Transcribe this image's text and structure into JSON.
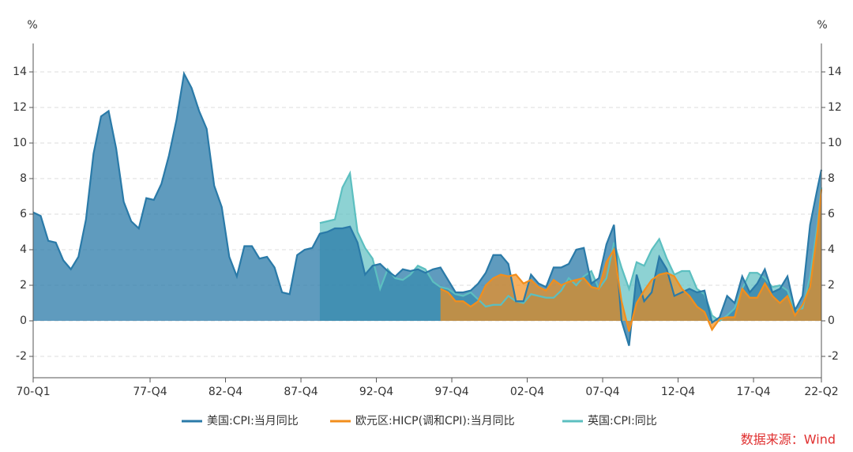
{
  "chart_data": {
    "type": "area",
    "y_label": "%",
    "y2_label": "%",
    "ylim": [
      -3.2,
      15.6
    ],
    "yticks": [
      -2,
      0,
      2,
      4,
      6,
      8,
      10,
      12,
      14
    ],
    "y2lim": [
      -3.2,
      15.6
    ],
    "y2ticks": [
      -2,
      0,
      2,
      4,
      6,
      8,
      10,
      12,
      14
    ],
    "xlim": [
      1970,
      2022.25
    ],
    "xticks": [
      {
        "value": 1970,
        "label": "70-Q1"
      },
      {
        "value": 1977.75,
        "label": "77-Q4"
      },
      {
        "value": 1982.75,
        "label": "82-Q4"
      },
      {
        "value": 1987.75,
        "label": "87-Q4"
      },
      {
        "value": 1992.75,
        "label": "92-Q4"
      },
      {
        "value": 1997.75,
        "label": "97-Q4"
      },
      {
        "value": 2002.75,
        "label": "02-Q4"
      },
      {
        "value": 2007.75,
        "label": "07-Q4"
      },
      {
        "value": 2012.75,
        "label": "12-Q4"
      },
      {
        "value": 2017.75,
        "label": "17-Q4"
      },
      {
        "value": 2022.25,
        "label": "22-Q2"
      }
    ],
    "grid": true,
    "legend": "bottom",
    "source": "数据来源：Wind",
    "series": [
      {
        "name": "美国:CPI:当月同比",
        "color": "#2a7aa8",
        "x": [
          1970,
          1970.5,
          1971,
          1971.5,
          1972,
          1972.5,
          1973,
          1973.5,
          1974,
          1974.5,
          1975,
          1975.5,
          1976,
          1976.5,
          1977,
          1977.5,
          1978,
          1978.5,
          1979,
          1979.5,
          1980,
          1980.5,
          1981,
          1981.5,
          1982,
          1982.5,
          1983,
          1983.5,
          1984,
          1984.5,
          1985,
          1985.5,
          1986,
          1986.5,
          1987,
          1987.5,
          1988,
          1988.5,
          1989,
          1989.5,
          1990,
          1990.5,
          1991,
          1991.5,
          1992,
          1992.5,
          1993,
          1993.5,
          1994,
          1994.5,
          1995,
          1995.5,
          1996,
          1996.5,
          1997,
          1997.5,
          1998,
          1998.5,
          1999,
          1999.5,
          2000,
          2000.5,
          2001,
          2001.5,
          2002,
          2002.5,
          2003,
          2003.5,
          2004,
          2004.5,
          2005,
          2005.5,
          2006,
          2006.5,
          2007,
          2007.5,
          2008,
          2008.5,
          2009,
          2009.5,
          2010,
          2010.5,
          2011,
          2011.5,
          2012,
          2012.5,
          2013,
          2013.5,
          2014,
          2014.5,
          2015,
          2015.5,
          2016,
          2016.5,
          2017,
          2017.5,
          2018,
          2018.5,
          2019,
          2019.5,
          2020,
          2020.5,
          2021,
          2021.5,
          2022,
          2022.25
        ],
        "values": [
          6.1,
          5.9,
          4.5,
          4.4,
          3.4,
          2.9,
          3.6,
          5.7,
          9.4,
          11.5,
          11.8,
          9.7,
          6.7,
          5.6,
          5.2,
          6.9,
          6.8,
          7.7,
          9.3,
          11.3,
          13.9,
          13.1,
          11.8,
          10.8,
          7.6,
          6.4,
          3.6,
          2.5,
          4.2,
          4.2,
          3.5,
          3.6,
          3.0,
          1.6,
          1.5,
          3.7,
          4.0,
          4.1,
          4.9,
          5.0,
          5.2,
          5.2,
          5.3,
          4.4,
          2.6,
          3.1,
          3.2,
          2.8,
          2.5,
          2.9,
          2.8,
          2.9,
          2.7,
          2.9,
          3.0,
          2.3,
          1.6,
          1.6,
          1.7,
          2.1,
          2.7,
          3.7,
          3.7,
          3.2,
          1.1,
          1.1,
          2.6,
          2.1,
          1.9,
          3.0,
          3.0,
          3.2,
          4.0,
          4.1,
          2.1,
          2.4,
          4.3,
          5.4,
          0.0,
          -1.4,
          2.6,
          1.1,
          1.6,
          3.6,
          2.9,
          1.4,
          1.6,
          1.8,
          1.6,
          1.7,
          -0.1,
          0.2,
          1.4,
          1.0,
          2.5,
          1.6,
          2.1,
          2.9,
          1.6,
          1.8,
          2.5,
          0.6,
          1.4,
          5.4,
          7.5,
          8.5
        ]
      },
      {
        "name": "欧元区:HICP(调和CPI):当月同比",
        "color": "#f28e1c",
        "x": [
          1997,
          1997.5,
          1998,
          1998.5,
          1999,
          1999.5,
          2000,
          2000.5,
          2001,
          2001.5,
          2002,
          2002.5,
          2003,
          2003.5,
          2004,
          2004.5,
          2005,
          2005.5,
          2006,
          2006.5,
          2007,
          2007.5,
          2008,
          2008.5,
          2009,
          2009.5,
          2010,
          2010.5,
          2011,
          2011.5,
          2012,
          2012.5,
          2013,
          2013.5,
          2014,
          2014.5,
          2015,
          2015.5,
          2016,
          2016.5,
          2017,
          2017.5,
          2018,
          2018.5,
          2019,
          2019.5,
          2020,
          2020.5,
          2021,
          2021.5,
          2022,
          2022.25
        ],
        "values": [
          1.8,
          1.6,
          1.1,
          1.1,
          0.8,
          1.1,
          2.0,
          2.4,
          2.6,
          2.5,
          2.6,
          2.1,
          2.3,
          1.9,
          1.7,
          2.3,
          2.0,
          2.2,
          2.3,
          2.4,
          1.9,
          1.8,
          3.3,
          4.0,
          1.1,
          -0.6,
          1.0,
          1.7,
          2.3,
          2.6,
          2.7,
          2.5,
          1.8,
          1.4,
          0.8,
          0.5,
          -0.5,
          0.1,
          0.2,
          0.2,
          1.8,
          1.3,
          1.3,
          2.1,
          1.4,
          1.0,
          1.4,
          0.3,
          0.9,
          1.9,
          5.1,
          7.4
        ]
      },
      {
        "name": "英国:CPI:同比",
        "color": "#5cbfc0",
        "x": [
          1989,
          1989.5,
          1990,
          1990.5,
          1991,
          1991.5,
          1992,
          1992.5,
          1993,
          1993.5,
          1994,
          1994.5,
          1995,
          1995.5,
          1996,
          1996.5,
          1997,
          1997.5,
          1998,
          1998.5,
          1999,
          1999.5,
          2000,
          2000.5,
          2001,
          2001.5,
          2002,
          2002.5,
          2003,
          2003.5,
          2004,
          2004.5,
          2005,
          2005.5,
          2006,
          2006.5,
          2007,
          2007.5,
          2008,
          2008.5,
          2009,
          2009.5,
          2010,
          2010.5,
          2011,
          2011.5,
          2012,
          2012.5,
          2013,
          2013.5,
          2014,
          2014.5,
          2015,
          2015.5,
          2016,
          2016.5,
          2017,
          2017.5,
          2018,
          2018.5,
          2019,
          2019.5,
          2020,
          2020.5,
          2021,
          2021.5,
          2022,
          2022.25
        ],
        "values": [
          5.5,
          5.6,
          5.7,
          7.5,
          8.3,
          5.0,
          4.1,
          3.5,
          1.8,
          2.9,
          2.4,
          2.3,
          2.6,
          3.1,
          2.9,
          2.2,
          1.9,
          1.8,
          1.5,
          1.4,
          1.6,
          1.2,
          0.8,
          0.9,
          0.9,
          1.4,
          1.1,
          1.0,
          1.5,
          1.4,
          1.3,
          1.3,
          1.7,
          2.4,
          2.0,
          2.5,
          2.8,
          1.8,
          2.4,
          4.4,
          3.0,
          1.8,
          3.3,
          3.1,
          4.0,
          4.6,
          3.5,
          2.6,
          2.8,
          2.8,
          1.8,
          1.5,
          0.3,
          0.0,
          0.3,
          0.7,
          1.8,
          2.7,
          2.7,
          2.4,
          1.9,
          2.0,
          1.7,
          0.6,
          0.7,
          2.5,
          5.5,
          7.5
        ]
      }
    ]
  }
}
